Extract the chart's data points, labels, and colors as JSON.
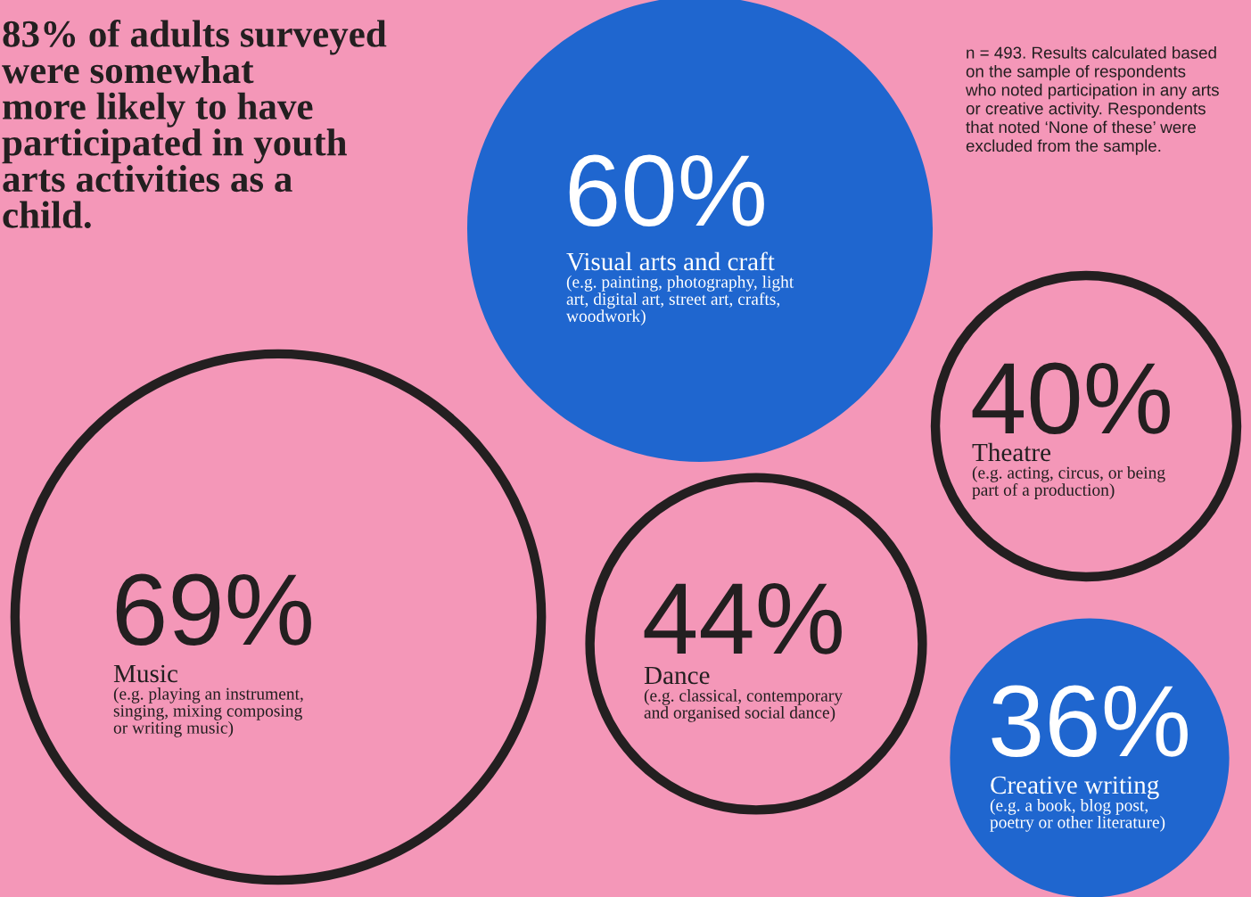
{
  "chart_data": {
    "type": "other",
    "title": "83% of adults surveyed\nwere somewhat\nmore likely to have\nparticipated in youth\narts activities as a\nchild.",
    "categories": [
      "Visual arts and craft",
      "Theatre",
      "Music",
      "Dance",
      "Creative writing"
    ],
    "values": [
      60,
      40,
      69,
      44,
      36
    ],
    "value_labels": [
      "60%",
      "40%",
      "69%",
      "44%",
      "36%"
    ],
    "colors": [
      "#1f66cf",
      "#f497b8",
      "#f497b8",
      "#f497b8",
      "#1f66cf"
    ],
    "annotations": [
      {
        "text": "n = 493. Results calculated based\non the sample of respondents\nwho noted participation in any arts\nor creative activity. Respondents\nthat noted ‘None of these’ were\nexcluded from the sample."
      },
      {
        "text": "(e.g. painting, photography, light\nart, digital art, street art, crafts,\nwoodwork)",
        "x": "Visual arts and craft"
      },
      {
        "text": "(e.g. acting, circus, or being\npart of a production)",
        "x": "Theatre"
      },
      {
        "text": "(e.g. playing an instrument,\nsinging, mixing composing\nor writing music)",
        "x": "Music"
      },
      {
        "text": "(e.g. classical, contemporary\nand organised social dance)",
        "x": "Dance"
      },
      {
        "text": "(e.g. a book, blog post,\npoetry or other literature)",
        "x": "Creative writing"
      }
    ]
  }
}
